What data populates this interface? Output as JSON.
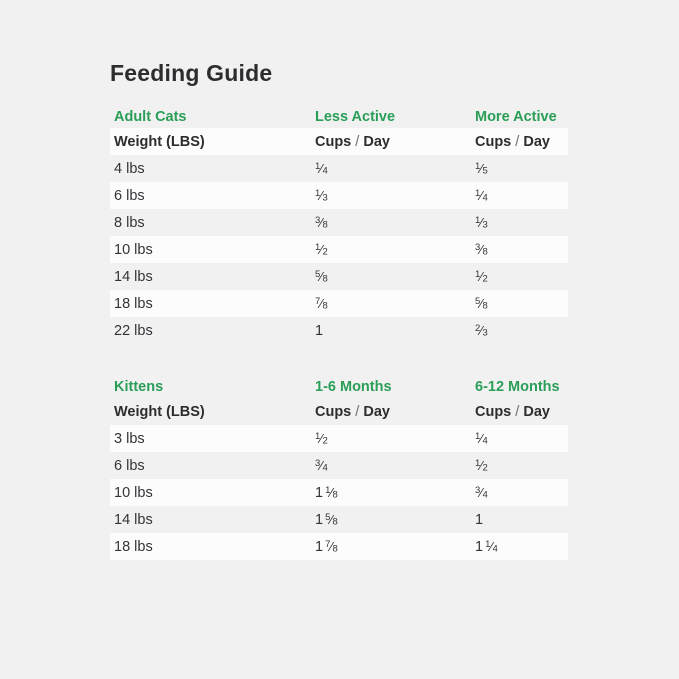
{
  "title": "Feeding Guide",
  "colors": {
    "background": "#f1f1f2",
    "row_highlight": "#fcfcfd",
    "accent_green": "#2a9e57",
    "heading_text": "#2d2d2f",
    "body_text": "#333437",
    "slash_gray": "#6f7072"
  },
  "chart_data": [
    {
      "type": "table",
      "name": "adult-cats",
      "group_label": "Adult Cats",
      "period_labels": [
        "Less Active",
        "More Active"
      ],
      "column_headers": [
        "Weight (LBS)",
        "Cups / Day",
        "Cups / Day"
      ],
      "header_row_highlight": true,
      "rows": [
        [
          "4 lbs",
          "1/4",
          "1/5"
        ],
        [
          "6 lbs",
          "1/3",
          "1/4"
        ],
        [
          "8 lbs",
          "3/8",
          "1/3"
        ],
        [
          "10 lbs",
          "1/2",
          "3/8"
        ],
        [
          "14 lbs",
          "5/8",
          "1/2"
        ],
        [
          "18 lbs",
          "7/8",
          "5/8"
        ],
        [
          "22 lbs",
          "1",
          "2/3"
        ]
      ]
    },
    {
      "type": "table",
      "name": "kittens",
      "group_label": "Kittens",
      "period_labels": [
        "1-6 Months",
        "6-12 Months"
      ],
      "column_headers": [
        "Weight (LBS)",
        "Cups / Day",
        "Cups / Day"
      ],
      "header_row_highlight": false,
      "rows": [
        [
          "3 lbs",
          "1/2",
          "1/4"
        ],
        [
          "6 lbs",
          "3/4",
          "1/2"
        ],
        [
          "10 lbs",
          "1 1/8",
          "3/4"
        ],
        [
          "14 lbs",
          "1 5/8",
          "1"
        ],
        [
          "18 lbs",
          "1 7/8",
          "1 1/4"
        ]
      ]
    }
  ]
}
